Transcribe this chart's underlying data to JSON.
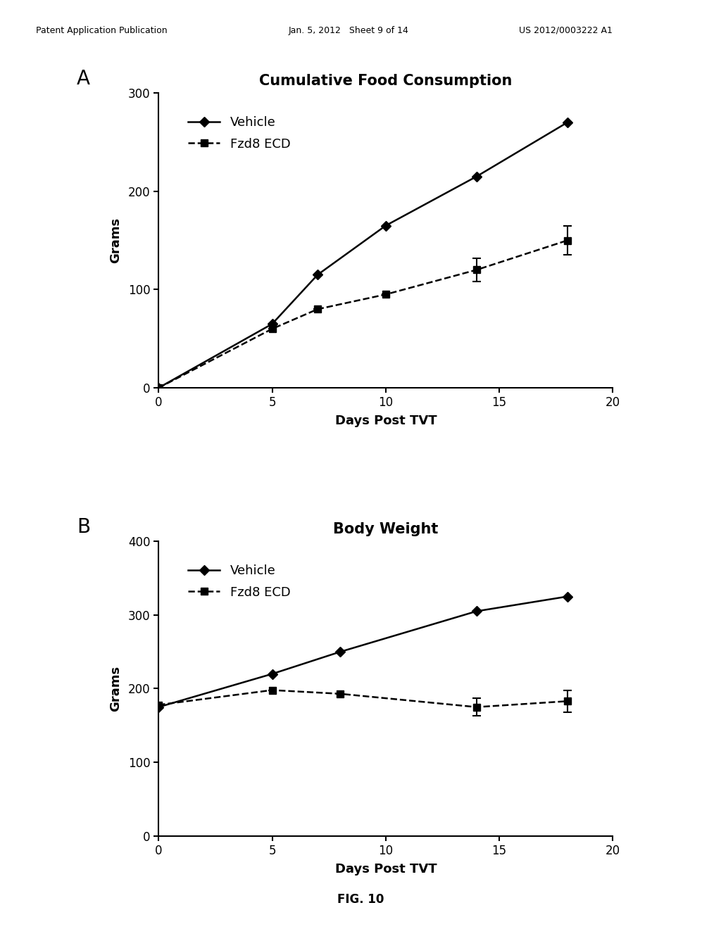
{
  "panel_A": {
    "title": "Cumulative Food Consumption",
    "xlabel": "Days Post TVT",
    "ylabel": "Grams",
    "vehicle_x": [
      0,
      5,
      7,
      10,
      14,
      18
    ],
    "vehicle_y": [
      0,
      65,
      115,
      165,
      215,
      270
    ],
    "fzd8_x": [
      0,
      5,
      7,
      10,
      14,
      18
    ],
    "fzd8_y": [
      0,
      60,
      80,
      95,
      120,
      150
    ],
    "fzd8_yerr": [
      0,
      0,
      0,
      0,
      12,
      15
    ],
    "xlim": [
      0,
      20
    ],
    "ylim": [
      0,
      300
    ],
    "yticks": [
      0,
      100,
      200,
      300
    ],
    "xticks": [
      0,
      5,
      10,
      15,
      20
    ]
  },
  "panel_B": {
    "title": "Body Weight",
    "xlabel": "Days Post TVT",
    "ylabel": "Grams",
    "vehicle_x": [
      0,
      5,
      8,
      14,
      18
    ],
    "vehicle_y": [
      175,
      220,
      250,
      305,
      325
    ],
    "fzd8_x": [
      0,
      5,
      8,
      14,
      18
    ],
    "fzd8_y": [
      178,
      198,
      193,
      175,
      183
    ],
    "fzd8_yerr": [
      0,
      0,
      0,
      12,
      15
    ],
    "xlim": [
      0,
      20
    ],
    "ylim": [
      0,
      400
    ],
    "yticks": [
      0,
      100,
      200,
      300,
      400
    ],
    "xticks": [
      0,
      5,
      10,
      15,
      20
    ]
  },
  "header_left": "Patent Application Publication",
  "header_mid": "Jan. 5, 2012   Sheet 9 of 14",
  "header_right": "US 2012/0003222 A1",
  "fig_label": "FIG. 10",
  "background_color": "#ffffff",
  "line_color": "#000000",
  "title_fontsize": 15,
  "label_fontsize": 13,
  "tick_fontsize": 12,
  "legend_fontsize": 13,
  "panel_label_fontsize": 20
}
